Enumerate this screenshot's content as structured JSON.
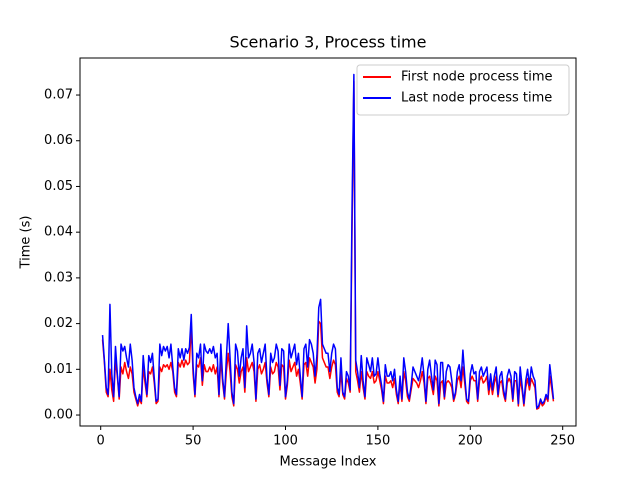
{
  "chart_data": {
    "type": "line",
    "title": "Scenario 3, Process time",
    "x_label": "Message Index",
    "y_label": "Time (s)",
    "x": [
      1,
      2,
      3,
      4,
      5,
      6,
      7,
      8,
      9,
      10,
      11,
      12,
      13,
      14,
      15,
      16,
      17,
      18,
      19,
      20,
      21,
      22,
      23,
      24,
      25,
      26,
      27,
      28,
      29,
      30,
      31,
      32,
      33,
      34,
      35,
      36,
      37,
      38,
      39,
      40,
      41,
      42,
      43,
      44,
      45,
      46,
      47,
      48,
      49,
      50,
      51,
      52,
      53,
      54,
      55,
      56,
      57,
      58,
      59,
      60,
      61,
      62,
      63,
      64,
      65,
      66,
      67,
      68,
      69,
      70,
      71,
      72,
      73,
      74,
      75,
      76,
      77,
      78,
      79,
      80,
      81,
      82,
      83,
      84,
      85,
      86,
      87,
      88,
      89,
      90,
      91,
      92,
      93,
      94,
      95,
      96,
      97,
      98,
      99,
      100,
      101,
      102,
      103,
      104,
      105,
      106,
      107,
      108,
      109,
      110,
      111,
      112,
      113,
      114,
      115,
      116,
      117,
      118,
      119,
      120,
      121,
      122,
      123,
      124,
      125,
      126,
      127,
      128,
      129,
      130,
      131,
      132,
      133,
      134,
      135,
      136,
      137,
      138,
      139,
      140,
      141,
      142,
      143,
      144,
      145,
      146,
      147,
      148,
      149,
      150,
      151,
      152,
      153,
      154,
      155,
      156,
      157,
      158,
      159,
      160,
      161,
      162,
      163,
      164,
      165,
      166,
      167,
      168,
      169,
      170,
      171,
      172,
      173,
      174,
      175,
      176,
      177,
      178,
      179,
      180,
      181,
      182,
      183,
      184,
      185,
      186,
      187,
      188,
      189,
      190,
      191,
      192,
      193,
      194,
      195,
      196,
      197,
      198,
      199,
      200,
      201,
      202,
      203,
      204,
      205,
      206,
      207,
      208,
      209,
      210,
      211,
      212,
      213,
      214,
      215,
      216,
      217,
      218,
      219,
      220,
      221,
      222,
      223,
      224,
      225,
      226,
      227,
      228,
      229,
      230,
      231,
      232,
      233,
      234,
      235,
      236,
      237,
      238,
      239,
      240,
      241,
      242,
      243,
      244,
      245
    ],
    "series": [
      {
        "name": "First node process time",
        "color": "#ff0000",
        "values": [
          0.0165,
          0.0115,
          0.005,
          0.004,
          0.01,
          0.0055,
          0.003,
          0.012,
          0.0085,
          0.0035,
          0.0105,
          0.009,
          0.0115,
          0.0095,
          0.008,
          0.0105,
          0.009,
          0.005,
          0.0035,
          0.002,
          0.0035,
          0.0025,
          0.0105,
          0.007,
          0.004,
          0.0095,
          0.009,
          0.0105,
          0.007,
          0.0025,
          0.003,
          0.0105,
          0.0095,
          0.011,
          0.0105,
          0.011,
          0.01,
          0.0115,
          0.0095,
          0.005,
          0.004,
          0.0115,
          0.0105,
          0.012,
          0.0105,
          0.012,
          0.011,
          0.0115,
          0.0195,
          0.009,
          0.004,
          0.011,
          0.0105,
          0.0125,
          0.0065,
          0.011,
          0.0095,
          0.0095,
          0.0105,
          0.0095,
          0.011,
          0.009,
          0.0105,
          0.004,
          0.0125,
          0.007,
          0.0035,
          0.0095,
          0.0135,
          0.0095,
          0.004,
          0.002,
          0.011,
          0.01,
          0.007,
          0.0095,
          0.0105,
          0.005,
          0.0125,
          0.0095,
          0.0105,
          0.0115,
          0.0095,
          0.003,
          0.01,
          0.011,
          0.009,
          0.01,
          0.0115,
          0.007,
          0.004,
          0.0105,
          0.009,
          0.0095,
          0.0115,
          0.0105,
          0.0055,
          0.011,
          0.0105,
          0.0035,
          0.0065,
          0.012,
          0.0095,
          0.0105,
          0.0115,
          0.0085,
          0.01,
          0.007,
          0.0035,
          0.011,
          0.0115,
          0.0085,
          0.0125,
          0.0115,
          0.0105,
          0.007,
          0.01,
          0.0205,
          0.02,
          0.0125,
          0.0115,
          0.0105,
          0.0105,
          0.008,
          0.0105,
          0.012,
          0.011,
          0.005,
          0.004,
          0.0095,
          0.0045,
          0.0035,
          0.008,
          0.007,
          0.005,
          0.04,
          0.073,
          0.0095,
          0.0075,
          0.005,
          0.0095,
          0.006,
          0.0035,
          0.0095,
          0.0085,
          0.008,
          0.0095,
          0.007,
          0.0075,
          0.0095,
          0.0075,
          0.0055,
          0.0025,
          0.0085,
          0.007,
          0.007,
          0.0075,
          0.006,
          0.008,
          0.0045,
          0.0025,
          0.007,
          0.003,
          0.0095,
          0.0075,
          0.004,
          0.003,
          0.0055,
          0.008,
          0.0075,
          0.007,
          0.006,
          0.0075,
          0.0095,
          0.007,
          0.0025,
          0.008,
          0.0085,
          0.0065,
          0.0045,
          0.0085,
          0.0075,
          0.002,
          0.007,
          0.0075,
          0.0035,
          0.007,
          0.0075,
          0.007,
          0.006,
          0.003,
          0.0045,
          0.0075,
          0.0085,
          0.006,
          0.0105,
          0.007,
          0.003,
          0.0025,
          0.0075,
          0.0085,
          0.0075,
          0.0075,
          0.003,
          0.0075,
          0.0085,
          0.007,
          0.0075,
          0.0085,
          0.0045,
          0.0075,
          0.0045,
          0.007,
          0.0085,
          0.004,
          0.007,
          0.0075,
          0.0045,
          0.003,
          0.007,
          0.008,
          0.007,
          0.003,
          0.0075,
          0.0075,
          0.002,
          0.008,
          0.0055,
          0.002,
          0.006,
          0.008,
          0.0055,
          0.008,
          0.007,
          0.006,
          0.0013,
          0.0015,
          0.003,
          0.002,
          0.0025,
          0.004,
          0.003,
          0.0085,
          0.006,
          0.003
        ]
      },
      {
        "name": "Last node process time",
        "color": "#0000ff",
        "values": [
          0.0175,
          0.012,
          0.006,
          0.0045,
          0.0242,
          0.009,
          0.004,
          0.015,
          0.009,
          0.004,
          0.0155,
          0.014,
          0.015,
          0.0125,
          0.0105,
          0.0155,
          0.012,
          0.006,
          0.004,
          0.0025,
          0.0045,
          0.003,
          0.013,
          0.0085,
          0.0045,
          0.013,
          0.0115,
          0.0135,
          0.008,
          0.003,
          0.0035,
          0.0155,
          0.013,
          0.015,
          0.014,
          0.015,
          0.0125,
          0.0155,
          0.0105,
          0.006,
          0.0045,
          0.0145,
          0.0125,
          0.0145,
          0.012,
          0.0145,
          0.0135,
          0.0148,
          0.022,
          0.0105,
          0.0045,
          0.0135,
          0.0125,
          0.0155,
          0.0075,
          0.0155,
          0.014,
          0.0135,
          0.0145,
          0.0135,
          0.015,
          0.0125,
          0.0135,
          0.0045,
          0.0155,
          0.008,
          0.004,
          0.0125,
          0.02,
          0.0125,
          0.005,
          0.0025,
          0.0155,
          0.014,
          0.0085,
          0.0125,
          0.0145,
          0.006,
          0.0195,
          0.0125,
          0.0135,
          0.0155,
          0.0115,
          0.0035,
          0.0135,
          0.0145,
          0.0115,
          0.0135,
          0.0155,
          0.008,
          0.0045,
          0.0135,
          0.0115,
          0.0125,
          0.0155,
          0.014,
          0.0065,
          0.0145,
          0.014,
          0.004,
          0.0075,
          0.0155,
          0.0125,
          0.014,
          0.0155,
          0.011,
          0.0135,
          0.0085,
          0.004,
          0.0145,
          0.0155,
          0.0105,
          0.0165,
          0.0155,
          0.0135,
          0.0085,
          0.013,
          0.0235,
          0.0253,
          0.0155,
          0.0145,
          0.0135,
          0.0135,
          0.0095,
          0.0135,
          0.0155,
          0.0145,
          0.006,
          0.0045,
          0.0125,
          0.005,
          0.004,
          0.0095,
          0.0085,
          0.0055,
          0.045,
          0.0745,
          0.012,
          0.0095,
          0.006,
          0.013,
          0.0075,
          0.004,
          0.0125,
          0.011,
          0.0095,
          0.0125,
          0.0085,
          0.009,
          0.0125,
          0.009,
          0.0065,
          0.003,
          0.011,
          0.0085,
          0.0085,
          0.0095,
          0.0075,
          0.01,
          0.0055,
          0.003,
          0.0085,
          0.0035,
          0.0125,
          0.0095,
          0.005,
          0.0035,
          0.0065,
          0.0105,
          0.0095,
          0.0085,
          0.0075,
          0.0095,
          0.0125,
          0.0085,
          0.003,
          0.01,
          0.012,
          0.0085,
          0.0055,
          0.012,
          0.011,
          0.0025,
          0.0115,
          0.0115,
          0.004,
          0.0095,
          0.011,
          0.0105,
          0.0075,
          0.0035,
          0.005,
          0.0095,
          0.011,
          0.0075,
          0.0142,
          0.0085,
          0.0035,
          0.003,
          0.009,
          0.011,
          0.009,
          0.0095,
          0.0035,
          0.0095,
          0.0105,
          0.0085,
          0.0095,
          0.0105,
          0.0055,
          0.009,
          0.0055,
          0.0085,
          0.0105,
          0.0045,
          0.0085,
          0.0095,
          0.0055,
          0.0035,
          0.0085,
          0.01,
          0.0085,
          0.0035,
          0.0095,
          0.009,
          0.0025,
          0.0105,
          0.0065,
          0.0025,
          0.0075,
          0.01,
          0.0065,
          0.0105,
          0.0085,
          0.0075,
          0.0015,
          0.002,
          0.0035,
          0.0025,
          0.003,
          0.0045,
          0.0035,
          0.011,
          0.0075,
          0.0035
        ]
      }
    ],
    "xlim": [
      -11.2,
      257.2
    ],
    "xticks": [
      0,
      50,
      100,
      150,
      200,
      250
    ],
    "ylim": [
      -0.0024,
      0.0781
    ],
    "yticks": [
      {
        "value": 0,
        "label": "0.00"
      },
      0.01,
      0.02,
      0.03,
      0.04,
      0.05,
      0.06,
      0.07
    ],
    "legend": "upper right",
    "grid": false
  }
}
